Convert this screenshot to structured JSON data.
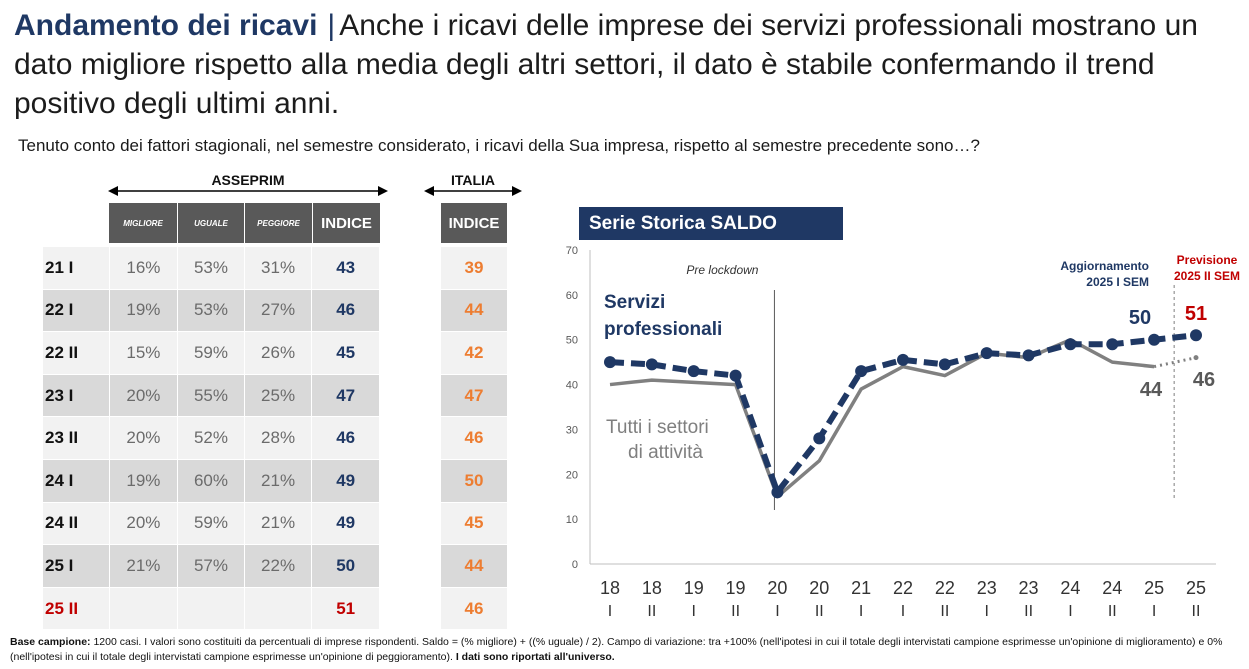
{
  "headline": {
    "bold": "Andamento dei ricavi",
    "separator": "|",
    "text": "Anche i ricavi delle imprese dei servizi professionali mostrano un dato migliore rispetto alla media degli altri settori, il dato è stabile confermando il trend positivo degli ultimi anni."
  },
  "question": "Tenuto conto dei fattori stagionali, nel semestre considerato, i ricavi della Sua impresa, rispetto al semestre precedente sono…?",
  "table": {
    "asseprim_label": "ASSEPRIM",
    "italia_label": "ITALIA",
    "headers": {
      "migliore": "MIGLIORE",
      "uguale": "UGUALE",
      "peggiore": "PEGGIORE",
      "indice": "INDICE",
      "indice_it": "INDICE"
    },
    "rows": [
      {
        "label": "21 I",
        "migliore": "16%",
        "uguale": "53%",
        "peggiore": "31%",
        "indice": "43",
        "italia": "39"
      },
      {
        "label": "22 I",
        "migliore": "19%",
        "uguale": "53%",
        "peggiore": "27%",
        "indice": "46",
        "italia": "44"
      },
      {
        "label": "22 II",
        "migliore": "15%",
        "uguale": "59%",
        "peggiore": "26%",
        "indice": "45",
        "italia": "42"
      },
      {
        "label": "23 I",
        "migliore": "20%",
        "uguale": "55%",
        "peggiore": "25%",
        "indice": "47",
        "italia": "47"
      },
      {
        "label": "23 II",
        "migliore": "20%",
        "uguale": "52%",
        "peggiore": "28%",
        "indice": "46",
        "italia": "46"
      },
      {
        "label": "24 I",
        "migliore": "19%",
        "uguale": "60%",
        "peggiore": "21%",
        "indice": "49",
        "italia": "50"
      },
      {
        "label": "24 II",
        "migliore": "20%",
        "uguale": "59%",
        "peggiore": "21%",
        "indice": "49",
        "italia": "45"
      },
      {
        "label": "25 I",
        "migliore": "21%",
        "uguale": "57%",
        "peggiore": "22%",
        "indice": "50",
        "italia": "44"
      },
      {
        "label": "25 II",
        "migliore": "",
        "uguale": "",
        "peggiore": "",
        "indice": "51",
        "italia": "46"
      }
    ]
  },
  "colors": {
    "navy": "#1f3864",
    "gray": "#808080",
    "orange": "#ed7d31",
    "red": "#c00000"
  },
  "chart_data": {
    "type": "line",
    "title": "Serie Storica SALDO",
    "ylim": [
      0,
      70
    ],
    "yticks": [
      0,
      10,
      20,
      30,
      40,
      50,
      60,
      70
    ],
    "categories": [
      [
        "18",
        "I"
      ],
      [
        "18",
        "II"
      ],
      [
        "19",
        "I"
      ],
      [
        "19",
        "II"
      ],
      [
        "20",
        "I"
      ],
      [
        "20",
        "II"
      ],
      [
        "21",
        "I"
      ],
      [
        "22",
        "I"
      ],
      [
        "22",
        "II"
      ],
      [
        "23",
        "I"
      ],
      [
        "23",
        "II"
      ],
      [
        "24",
        "I"
      ],
      [
        "24",
        "II"
      ],
      [
        "25",
        "I"
      ],
      [
        "25",
        "II"
      ]
    ],
    "series": [
      {
        "name": "Servizi professionali",
        "label_lines": [
          "Servizi",
          "professionali"
        ],
        "values": [
          45,
          44.5,
          43,
          42,
          16,
          28,
          43,
          45.5,
          44.5,
          47,
          46.5,
          49,
          49,
          50,
          51
        ]
      },
      {
        "name": "Tutti i settori di attività",
        "label_lines": [
          "Tutti i settori",
          "di attività"
        ],
        "values": [
          40,
          41,
          40.5,
          40,
          15,
          23,
          39,
          44,
          42,
          47,
          46,
          50,
          45,
          44,
          46
        ]
      }
    ],
    "annotations": {
      "pre_lockdown": "Pre lockdown",
      "aggiornamento": [
        "Aggiornamento",
        "2025 I SEM"
      ],
      "previsione": [
        "Previsione",
        "2025 II SEM"
      ],
      "labels": {
        "navy_25I": "50",
        "navy_25II": "51",
        "gray_25I": "44",
        "gray_25II": "46"
      }
    }
  },
  "footnote": {
    "bold1": "Base campione:",
    "text": "1200 casi. I valori sono costituiti da percentuali di imprese rispondenti. Saldo = (% migliore) + ((% uguale) / 2). Campo di variazione: tra +100% (nell'ipotesi in cui il totale degli intervistati campione esprimesse un'opinione di miglioramento) e 0% (nell'ipotesi in cui il totale degli intervistati campione esprimesse un'opinione di peggioramento).",
    "bold2": "I dati sono riportati all'universo."
  }
}
